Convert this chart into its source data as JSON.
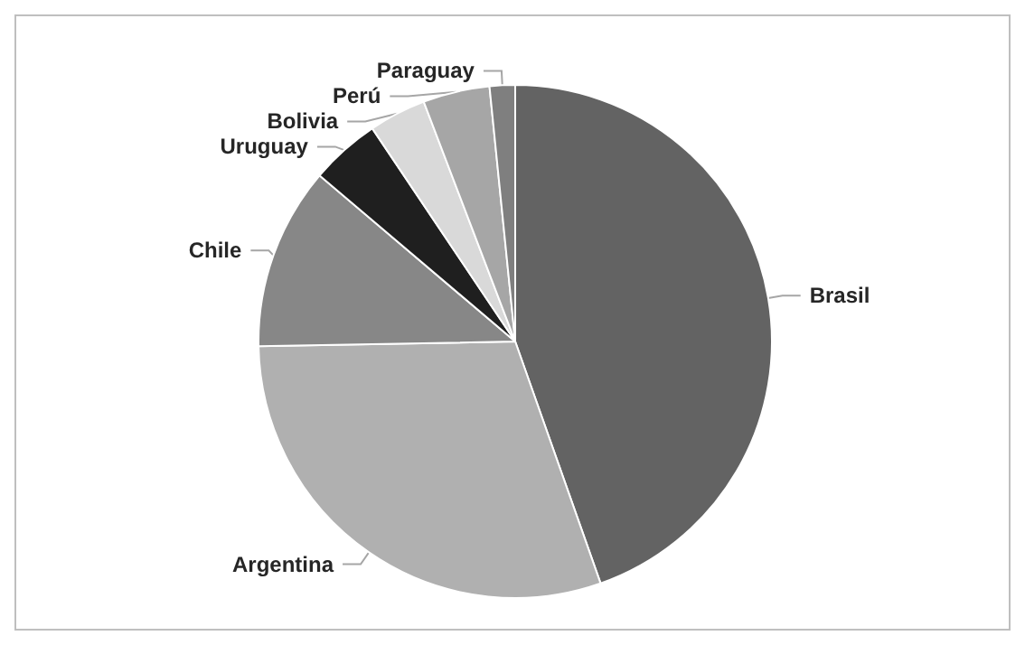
{
  "chart_data": {
    "type": "pie",
    "categories": [
      "Brasil",
      "Argentina",
      "Chile",
      "Uruguay",
      "Bolivia",
      "Perú",
      "Paraguay"
    ],
    "values": [
      44.6,
      30.1,
      11.5,
      4.4,
      3.6,
      4.2,
      1.6
    ],
    "colors": [
      "#636363",
      "#b0b0b0",
      "#878787",
      "#1f1f1f",
      "#d9d9d9",
      "#a6a6a6",
      "#7f7f7f"
    ]
  }
}
